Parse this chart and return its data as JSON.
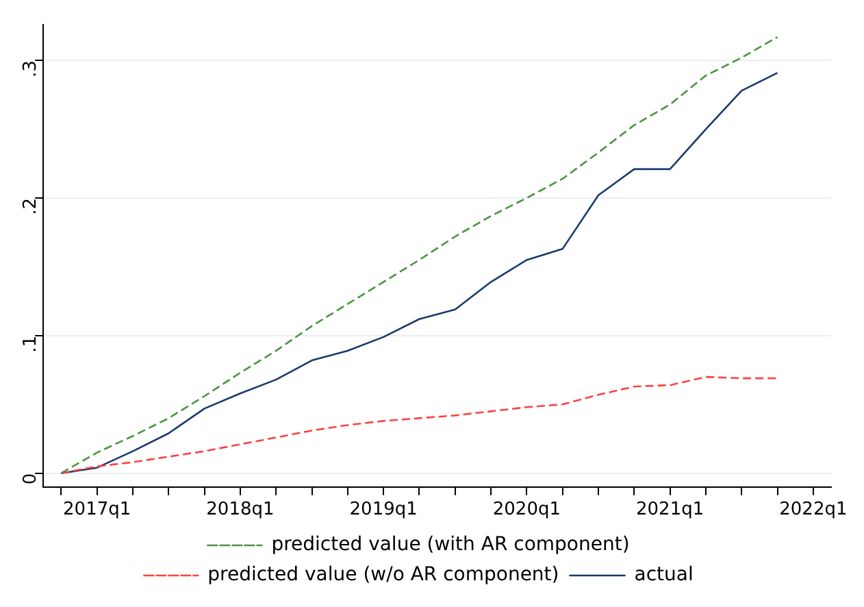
{
  "chart_data": {
    "type": "line",
    "categories": [
      null,
      "2017q1",
      null,
      null,
      null,
      "2018q1",
      null,
      null,
      null,
      "2019q1",
      null,
      null,
      null,
      "2020q1",
      null,
      null,
      null,
      "2021q1",
      null,
      null,
      null,
      "2022q1"
    ],
    "series": [
      {
        "name": "predicted value (with AR component)",
        "color": "#4a9440",
        "line_style": "dashed",
        "values": [
          0,
          0.015,
          0.027,
          0.04,
          0.056,
          0.073,
          0.089,
          0.107,
          0.123,
          0.139,
          0.155,
          0.172,
          0.187,
          0.2,
          0.214,
          0.233,
          0.253,
          0.268,
          0.289,
          0.302,
          0.317,
          null
        ]
      },
      {
        "name": "actual",
        "color": "#1a3a6b",
        "line_style": "solid",
        "values": [
          0,
          0.004,
          0.016,
          0.029,
          0.047,
          0.058,
          0.068,
          0.082,
          0.089,
          0.099,
          0.112,
          0.119,
          0.139,
          0.155,
          0.163,
          0.202,
          0.221,
          0.221,
          0.25,
          0.278,
          0.291,
          null
        ]
      },
      {
        "name": "predicted value (w/o AR component)",
        "color": "#ff4040",
        "line_style": "dashed",
        "values": [
          0,
          0.005,
          0.008,
          0.012,
          0.016,
          0.021,
          0.026,
          0.031,
          0.035,
          0.038,
          0.04,
          0.042,
          0.045,
          0.048,
          0.05,
          0.057,
          0.063,
          0.064,
          0.07,
          0.069,
          0.069,
          null
        ]
      }
    ],
    "ylim": [
      -0.01,
      0.326
    ],
    "yticks": [
      {
        "value": 0,
        "label": "0"
      },
      {
        "value": 0.1,
        "label": ".1"
      },
      {
        "value": 0.2,
        "label": ".2"
      },
      {
        "value": 0.3,
        "label": ".3"
      }
    ],
    "grid": "y",
    "legend": "bottom",
    "marker": "none"
  }
}
